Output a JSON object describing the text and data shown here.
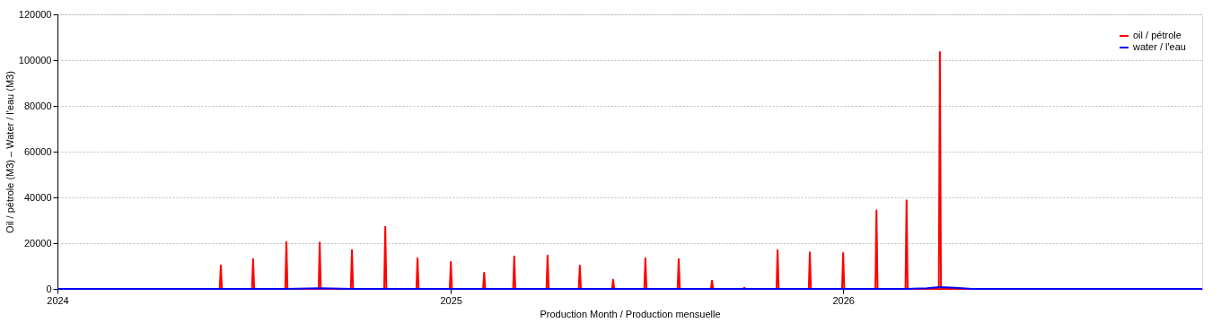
{
  "chart_data": {
    "type": "line",
    "xlabel": "Production Month / Production mensuelle",
    "ylabel": "Oil / pétrole (M3) – Water / l'eau (M3)",
    "xlim": [
      "2024-01-01",
      "2026-12-01"
    ],
    "xticks": [
      {
        "value": "2024-01-01",
        "label": "2024"
      },
      {
        "value": "2025-01-01",
        "label": "2025"
      },
      {
        "value": "2026-01-01",
        "label": "2026"
      }
    ],
    "ylim": [
      0,
      120000
    ],
    "yticks": [
      0,
      20000,
      40000,
      60000,
      80000,
      100000,
      120000
    ],
    "grid": "y",
    "legend": "top right",
    "line_style": "solid",
    "marker": "none",
    "series": [
      {
        "name": "oil / pétrole",
        "color": "#ff0000",
        "x": [
          "2024-01-01",
          "2024-05-31",
          "2024-06-01",
          "2024-06-02",
          "2024-06-30",
          "2024-07-01",
          "2024-07-02",
          "2024-07-31",
          "2024-08-01",
          "2024-08-02",
          "2024-08-31",
          "2024-09-01",
          "2024-09-02",
          "2024-09-30",
          "2024-10-01",
          "2024-10-02",
          "2024-10-31",
          "2024-11-01",
          "2024-11-02",
          "2024-11-30",
          "2024-12-01",
          "2024-12-02",
          "2024-12-31",
          "2025-01-01",
          "2025-01-02",
          "2025-01-31",
          "2025-02-01",
          "2025-02-02",
          "2025-02-28",
          "2025-03-01",
          "2025-03-02",
          "2025-03-31",
          "2025-04-01",
          "2025-04-02",
          "2025-04-30",
          "2025-05-01",
          "2025-05-02",
          "2025-05-31",
          "2025-06-01",
          "2025-06-02",
          "2025-06-30",
          "2025-07-01",
          "2025-07-02",
          "2025-07-31",
          "2025-08-01",
          "2025-08-02",
          "2025-08-31",
          "2025-09-01",
          "2025-09-02",
          "2025-09-30",
          "2025-10-01",
          "2025-10-02",
          "2025-10-31",
          "2025-11-01",
          "2025-11-02",
          "2025-11-30",
          "2025-12-01",
          "2025-12-02",
          "2025-12-31",
          "2026-01-01",
          "2026-01-02",
          "2026-01-31",
          "2026-02-01",
          "2026-02-02",
          "2026-02-28",
          "2026-03-01",
          "2026-03-02",
          "2026-03-31",
          "2026-04-01",
          "2026-04-02",
          "2026-12-01"
        ],
        "values": [
          0,
          0,
          10300,
          0,
          0,
          13000,
          0,
          0,
          20500,
          0,
          0,
          20300,
          0,
          0,
          17000,
          0,
          0,
          27200,
          0,
          0,
          13400,
          0,
          0,
          11800,
          0,
          0,
          7100,
          0,
          0,
          14200,
          0,
          0,
          14600,
          0,
          0,
          10200,
          0,
          0,
          4000,
          0,
          0,
          13400,
          0,
          0,
          13000,
          0,
          0,
          3600,
          0,
          0,
          500,
          0,
          0,
          17000,
          0,
          0,
          16000,
          0,
          0,
          15700,
          0,
          0,
          34300,
          0,
          0,
          38700,
          0,
          0,
          103500,
          0,
          0
        ]
      },
      {
        "name": "water / l'eau",
        "color": "#0000ff",
        "x": [
          "2024-01-01",
          "2024-08-01",
          "2024-09-01",
          "2024-10-01",
          "2026-03-01",
          "2026-03-20",
          "2026-04-01",
          "2026-04-15",
          "2026-05-01",
          "2026-12-01"
        ],
        "values": [
          0,
          0,
          300,
          0,
          0,
          300,
          800,
          500,
          0,
          0
        ]
      }
    ]
  }
}
